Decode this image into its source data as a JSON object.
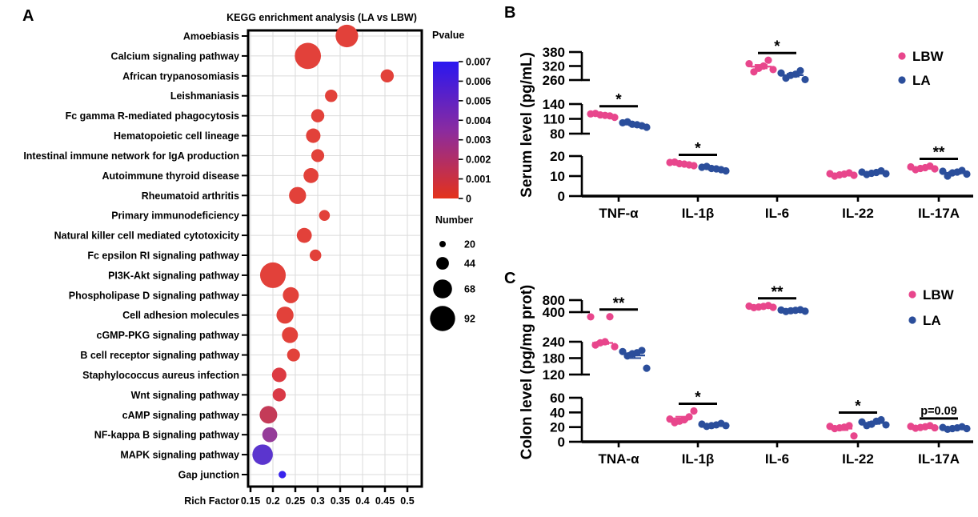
{
  "figure": {
    "colors": {
      "lbw": "#E8468C",
      "la": "#2B4E9B",
      "axis": "#000000",
      "grid": "#DBDBDB"
    },
    "legend": {
      "lbw": "LBW",
      "la": "LA"
    }
  },
  "chart_data": [
    {
      "id": "kegg-enrichment",
      "type": "bubble",
      "panel_letter": "A",
      "title": "KEGG enrichment analysis (LA vs LBW)",
      "xlabel": "Rich Factor",
      "x_ticks": [
        0.15,
        0.2,
        0.25,
        0.3,
        0.35,
        0.4,
        0.45,
        0.5
      ],
      "x_range": [
        0.145,
        0.53
      ],
      "grid": true,
      "pvalue_legend": {
        "title": "Pvalue",
        "ticks": [
          0.007,
          0.006,
          0.005,
          0.004,
          0.003,
          0.002,
          0.001,
          0
        ],
        "top_color": "#2A17F0",
        "mid_color": "#8A2BA0",
        "bottom_color": "#E4321B"
      },
      "number_legend": {
        "title": "Number",
        "sizes": [
          20,
          44,
          68,
          92
        ]
      },
      "label_palette": {
        "blue": "#2323F0",
        "purple": "#7B2A8C",
        "red": "#EE1E24",
        "green": "#3FE317",
        "black": "#000000"
      },
      "rows": [
        {
          "label": "Amoebiasis",
          "label_color": "blue",
          "rich_factor": 0.365,
          "number": 82,
          "pvalue": 0.0002,
          "bubble_color": "#E2413A"
        },
        {
          "label": "Calcium signaling pathway",
          "label_color": "purple",
          "rich_factor": 0.278,
          "number": 96,
          "pvalue": 0.0002,
          "bubble_color": "#E2413A"
        },
        {
          "label": "African trypanosomiasis",
          "label_color": "blue",
          "rich_factor": 0.455,
          "number": 46,
          "pvalue": 0.0002,
          "bubble_color": "#E2413A"
        },
        {
          "label": "Leishmaniasis",
          "label_color": "blue",
          "rich_factor": 0.33,
          "number": 43,
          "pvalue": 0.0002,
          "bubble_color": "#E2413A"
        },
        {
          "label": "Fc gamma R-mediated phagocytosis",
          "label_color": "red",
          "rich_factor": 0.3,
          "number": 46,
          "pvalue": 0.0002,
          "bubble_color": "#E2413A"
        },
        {
          "label": "Hematopoietic cell lineage",
          "label_color": "red",
          "rich_factor": 0.29,
          "number": 51,
          "pvalue": 0.0002,
          "bubble_color": "#E2413A"
        },
        {
          "label": "Intestinal immune network for IgA production",
          "label_color": "red",
          "rich_factor": 0.3,
          "number": 45,
          "pvalue": 0.0002,
          "bubble_color": "#E2413A"
        },
        {
          "label": "Autoimmune thyroid disease",
          "label_color": "green",
          "rich_factor": 0.285,
          "number": 53,
          "pvalue": 0.0002,
          "bubble_color": "#E2413A"
        },
        {
          "label": "Rheumatoid arthritis",
          "label_color": "green",
          "rich_factor": 0.255,
          "number": 61,
          "pvalue": 0.0002,
          "bubble_color": "#E2413A"
        },
        {
          "label": "Primary immunodeficiency",
          "label_color": "green",
          "rich_factor": 0.315,
          "number": 37,
          "pvalue": 0.0002,
          "bubble_color": "#E2413A"
        },
        {
          "label": "Natural killer cell mediated cytotoxicity",
          "label_color": "red",
          "rich_factor": 0.27,
          "number": 53,
          "pvalue": 0.0002,
          "bubble_color": "#E2413A"
        },
        {
          "label": "Fc epsilon RI signaling pathway",
          "label_color": "red",
          "rich_factor": 0.295,
          "number": 40,
          "pvalue": 0.0002,
          "bubble_color": "#E2413A"
        },
        {
          "label": "PI3K-Akt signaling pathway",
          "label_color": "purple",
          "rich_factor": 0.2,
          "number": 94,
          "pvalue": 0.0003,
          "bubble_color": "#E2413A"
        },
        {
          "label": "Phospholipase D signaling pathway",
          "label_color": "purple",
          "rich_factor": 0.24,
          "number": 57,
          "pvalue": 0.0003,
          "bubble_color": "#E2413A"
        },
        {
          "label": "Cell adhesion molecules",
          "label_color": "black",
          "rich_factor": 0.227,
          "number": 61,
          "pvalue": 0.0003,
          "bubble_color": "#E2413A"
        },
        {
          "label": "cGMP-PKG signaling pathway",
          "label_color": "purple",
          "rich_factor": 0.238,
          "number": 57,
          "pvalue": 0.0003,
          "bubble_color": "#E2413A"
        },
        {
          "label": "B cell receptor signaling pathway",
          "label_color": "red",
          "rich_factor": 0.246,
          "number": 45,
          "pvalue": 0.0003,
          "bubble_color": "#E2413A"
        },
        {
          "label": "Staphylococcus aureus infection",
          "label_color": "blue",
          "rich_factor": 0.214,
          "number": 51,
          "pvalue": 0.0004,
          "bubble_color": "#DC3A42"
        },
        {
          "label": "Wnt signaling pathway",
          "label_color": "purple",
          "rich_factor": 0.214,
          "number": 46,
          "pvalue": 0.0005,
          "bubble_color": "#D93946"
        },
        {
          "label": "cAMP signaling pathway",
          "label_color": "purple",
          "rich_factor": 0.19,
          "number": 63,
          "pvalue": 0.001,
          "bubble_color": "#C43B58"
        },
        {
          "label": "NF-kappa B signaling pathway",
          "label_color": "purple",
          "rich_factor": 0.193,
          "number": 53,
          "pvalue": 0.002,
          "bubble_color": "#953C99"
        },
        {
          "label": "MAPK signaling pathway",
          "label_color": "purple",
          "rich_factor": 0.177,
          "number": 74,
          "pvalue": 0.0045,
          "bubble_color": "#5B35CE"
        },
        {
          "label": "Gap junction",
          "label_color": "black",
          "rich_factor": 0.221,
          "number": 24,
          "pvalue": 0.006,
          "bubble_color": "#3823EC"
        }
      ]
    },
    {
      "id": "serum-cytokines",
      "type": "scatter",
      "panel_letter": "B",
      "ylabel": "Serum level (pg/mL)",
      "categories": [
        "TNF-α",
        "IL-1β",
        "IL-6",
        "IL-22",
        "IL-17A"
      ],
      "y_segments": [
        {
          "ticks": [
            0,
            10,
            20
          ]
        },
        {
          "ticks": [
            80,
            110,
            140
          ]
        },
        {
          "ticks": [
            260,
            320,
            380
          ]
        }
      ],
      "series": [
        {
          "name": "LBW",
          "values": [
            [
              120,
              118,
              116,
              121,
              117,
              113
            ],
            [
              16.8,
              16.2,
              15.6,
              17,
              16,
              15.2
            ],
            [
              330,
              310,
              345,
              295,
              320,
              305
            ],
            [
              11.2,
              10.6,
              11.6,
              10,
              11,
              10.4
            ],
            [
              14.6,
              13.8,
              15,
              13.2,
              14.2,
              13.6
            ]
          ]
        },
        {
          "name": "LA",
          "values": [
            [
              102,
              99,
              96,
              104,
              98,
              93
            ],
            [
              14.4,
              13.8,
              13.2,
              14.8,
              13.6,
              12.6
            ],
            [
              290,
              280,
              300,
              268,
              285,
              262
            ],
            [
              12,
              11.4,
              12.6,
              10.8,
              11.8,
              11.2
            ],
            [
              12.4,
              11.6,
              12.8,
              10,
              12,
              11
            ]
          ]
        }
      ],
      "significance": [
        "*",
        "*",
        "*",
        "",
        "**"
      ]
    },
    {
      "id": "colon-cytokines",
      "type": "scatter",
      "panel_letter": "C",
      "ylabel": "Colon level (pg/mg prot)",
      "categories": [
        "TNA-α",
        "IL-1β",
        "IL-6",
        "IL-22",
        "IL-17A"
      ],
      "y_segments": [
        {
          "ticks": [
            0,
            20,
            40,
            60
          ]
        },
        {
          "ticks": [
            120,
            180,
            240
          ]
        },
        {
          "ticks": [
            400,
            800
          ]
        }
      ],
      "series": [
        {
          "name": "LBW",
          "values": [
            [
              242,
              236,
              246,
              228,
              240,
              222
            ],
            [
              31,
              28,
              34,
              26,
              30,
              42
            ],
            [
              600,
              570,
              620,
              550,
              590,
              560
            ],
            [
              21,
              19,
              22,
              18,
              20,
              8
            ],
            [
              21,
              19.5,
              22,
              18.5,
              20.5,
              19
            ]
          ]
        },
        {
          "name": "LA",
          "values": [
            [
              204,
              196,
              208,
              188,
              200,
              143
            ],
            [
              24,
              22,
              25,
              21,
              23,
              22
            ],
            [
              470,
              445,
              480,
              420,
              460,
              430
            ],
            [
              27,
              24,
              30,
              22,
              28,
              23
            ],
            [
              19.5,
              18,
              20.5,
              17,
              19,
              18
            ]
          ]
        }
      ],
      "significance": [
        "**",
        "*",
        "**",
        "*",
        "p=0.09"
      ]
    }
  ]
}
